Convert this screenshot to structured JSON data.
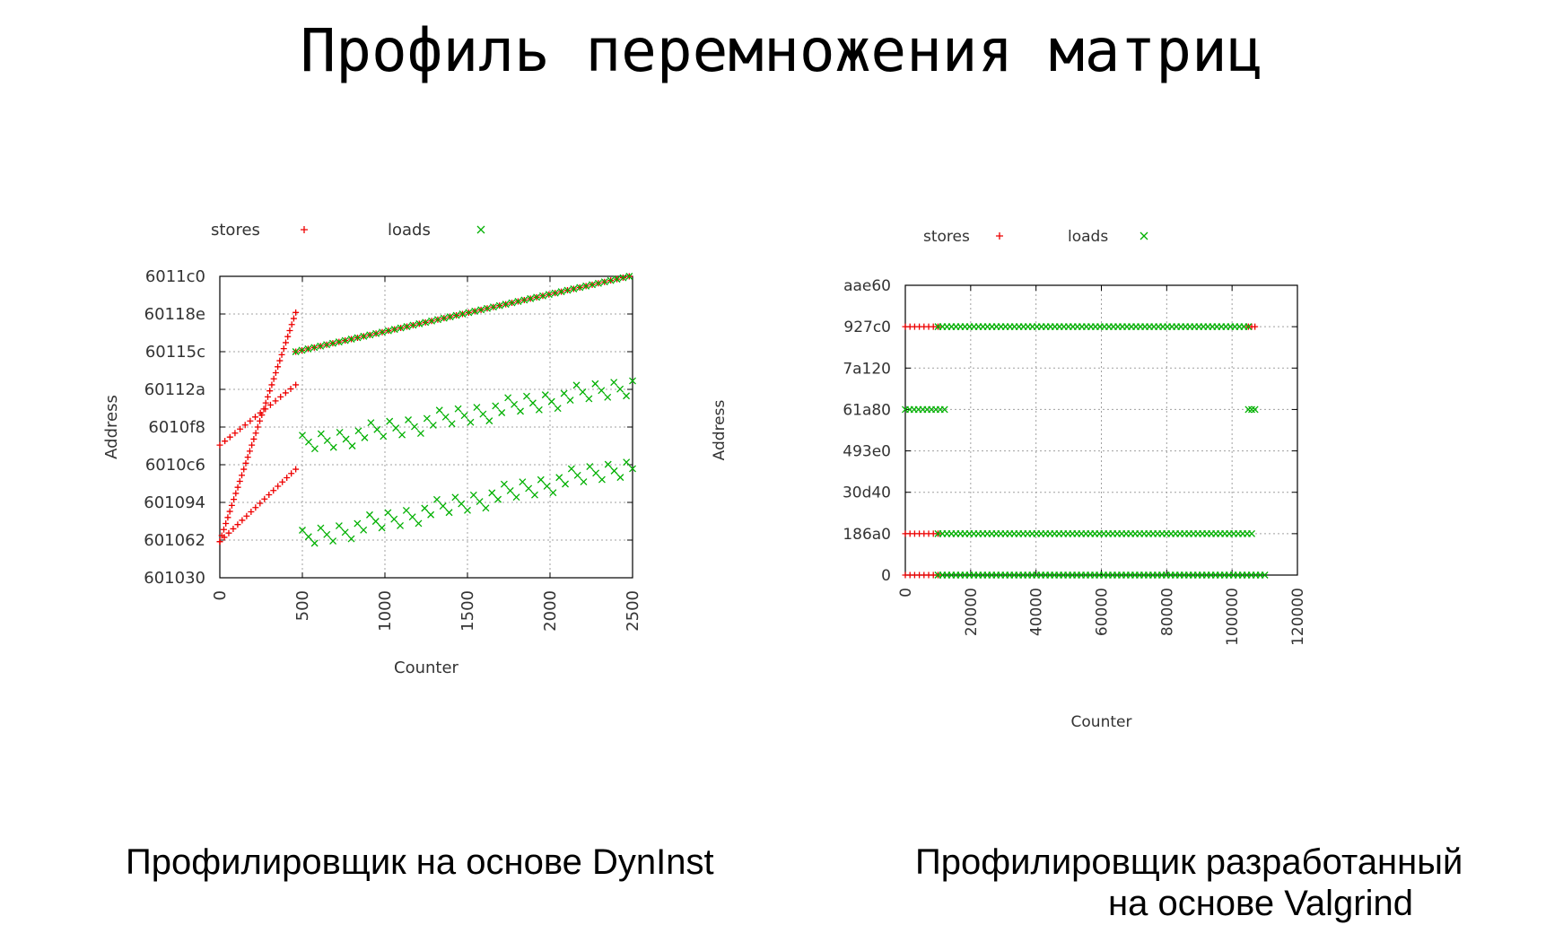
{
  "title": "Профиль перемножения матриц",
  "captions": {
    "left": "Профилировщик на основе DynInst",
    "right_line1": "Профилировщик разработанный",
    "right_line2": "на основе Valgrind"
  },
  "colors": {
    "stores": "#ee0000",
    "loads": "#00b000",
    "grid": "#a0a0a0",
    "axis": "#000000"
  },
  "chart_data": [
    {
      "type": "scatter",
      "xlabel": "Counter",
      "ylabel": "Address",
      "xlim": [
        0,
        2500
      ],
      "x_ticks": [
        0,
        500,
        1000,
        1500,
        2000,
        2500
      ],
      "y_ticks": [
        "601030",
        "601062",
        "601094",
        "6010c6",
        "6010f8",
        "60112a",
        "60115c",
        "60118e",
        "6011c0"
      ],
      "ylim": [
        "601030",
        "6011c0"
      ],
      "grid": true,
      "legend": "top",
      "series": [
        {
          "name": "stores",
          "marker": "+",
          "segments": [
            {
              "x": [
                0,
                460
              ],
              "y": [
                "601060",
                "601190"
              ]
            },
            {
              "x": [
                0,
                460
              ],
              "y": [
                "6010e0",
                "601130"
              ]
            },
            {
              "x": [
                0,
                460
              ],
              "y": [
                "601060",
                "6010c0"
              ]
            },
            {
              "x": [
                460,
                2480
              ],
              "y": [
                "60115c",
                "6011c0"
              ]
            }
          ]
        },
        {
          "name": "loads",
          "marker": "x",
          "segments": [
            {
              "x": [
                460,
                2480
              ],
              "y": [
                "60115c",
                "6011c0"
              ]
            },
            {
              "x": [
                500,
                2500
              ],
              "y": [
                "6010e0",
                "601130"
              ]
            },
            {
              "x": [
                500,
                2500
              ],
              "y": [
                "601062",
                "6010c6"
              ]
            }
          ]
        }
      ]
    },
    {
      "type": "scatter",
      "xlabel": "Counter",
      "ylabel": "Address",
      "xlim": [
        0,
        120000
      ],
      "x_ticks": [
        0,
        20000,
        40000,
        60000,
        80000,
        100000,
        120000
      ],
      "y_ticks": [
        "0",
        "186a0",
        "30d40",
        "493e0",
        "61a80",
        "7a120",
        "927c0",
        "aae60"
      ],
      "ylim": [
        "0",
        "aae60"
      ],
      "grid": true,
      "legend": "top",
      "series": [
        {
          "name": "stores",
          "marker": "+",
          "segments": [
            {
              "x": [
                0,
                10000
              ],
              "y": [
                "927c0",
                "927c0"
              ]
            },
            {
              "x": [
                0,
                10000
              ],
              "y": [
                "0",
                "0"
              ]
            },
            {
              "x": [
                0,
                10000
              ],
              "y": [
                "186a0",
                "186a0"
              ]
            },
            {
              "x": [
                105000,
                107000
              ],
              "y": [
                "927c0",
                "927c0"
              ]
            }
          ]
        },
        {
          "name": "loads",
          "marker": "x",
          "segments": [
            {
              "x": [
                10000,
                105000
              ],
              "y": [
                "927c0",
                "927c0"
              ]
            },
            {
              "x": [
                0,
                12000
              ],
              "y": [
                "61a80",
                "61a80"
              ]
            },
            {
              "x": [
                105000,
                107000
              ],
              "y": [
                "61a80",
                "61a80"
              ]
            },
            {
              "x": [
                10000,
                106000
              ],
              "y": [
                "186a0",
                "186a0"
              ]
            },
            {
              "x": [
                10000,
                110000
              ],
              "y": [
                "0",
                "0"
              ]
            }
          ]
        }
      ]
    }
  ]
}
